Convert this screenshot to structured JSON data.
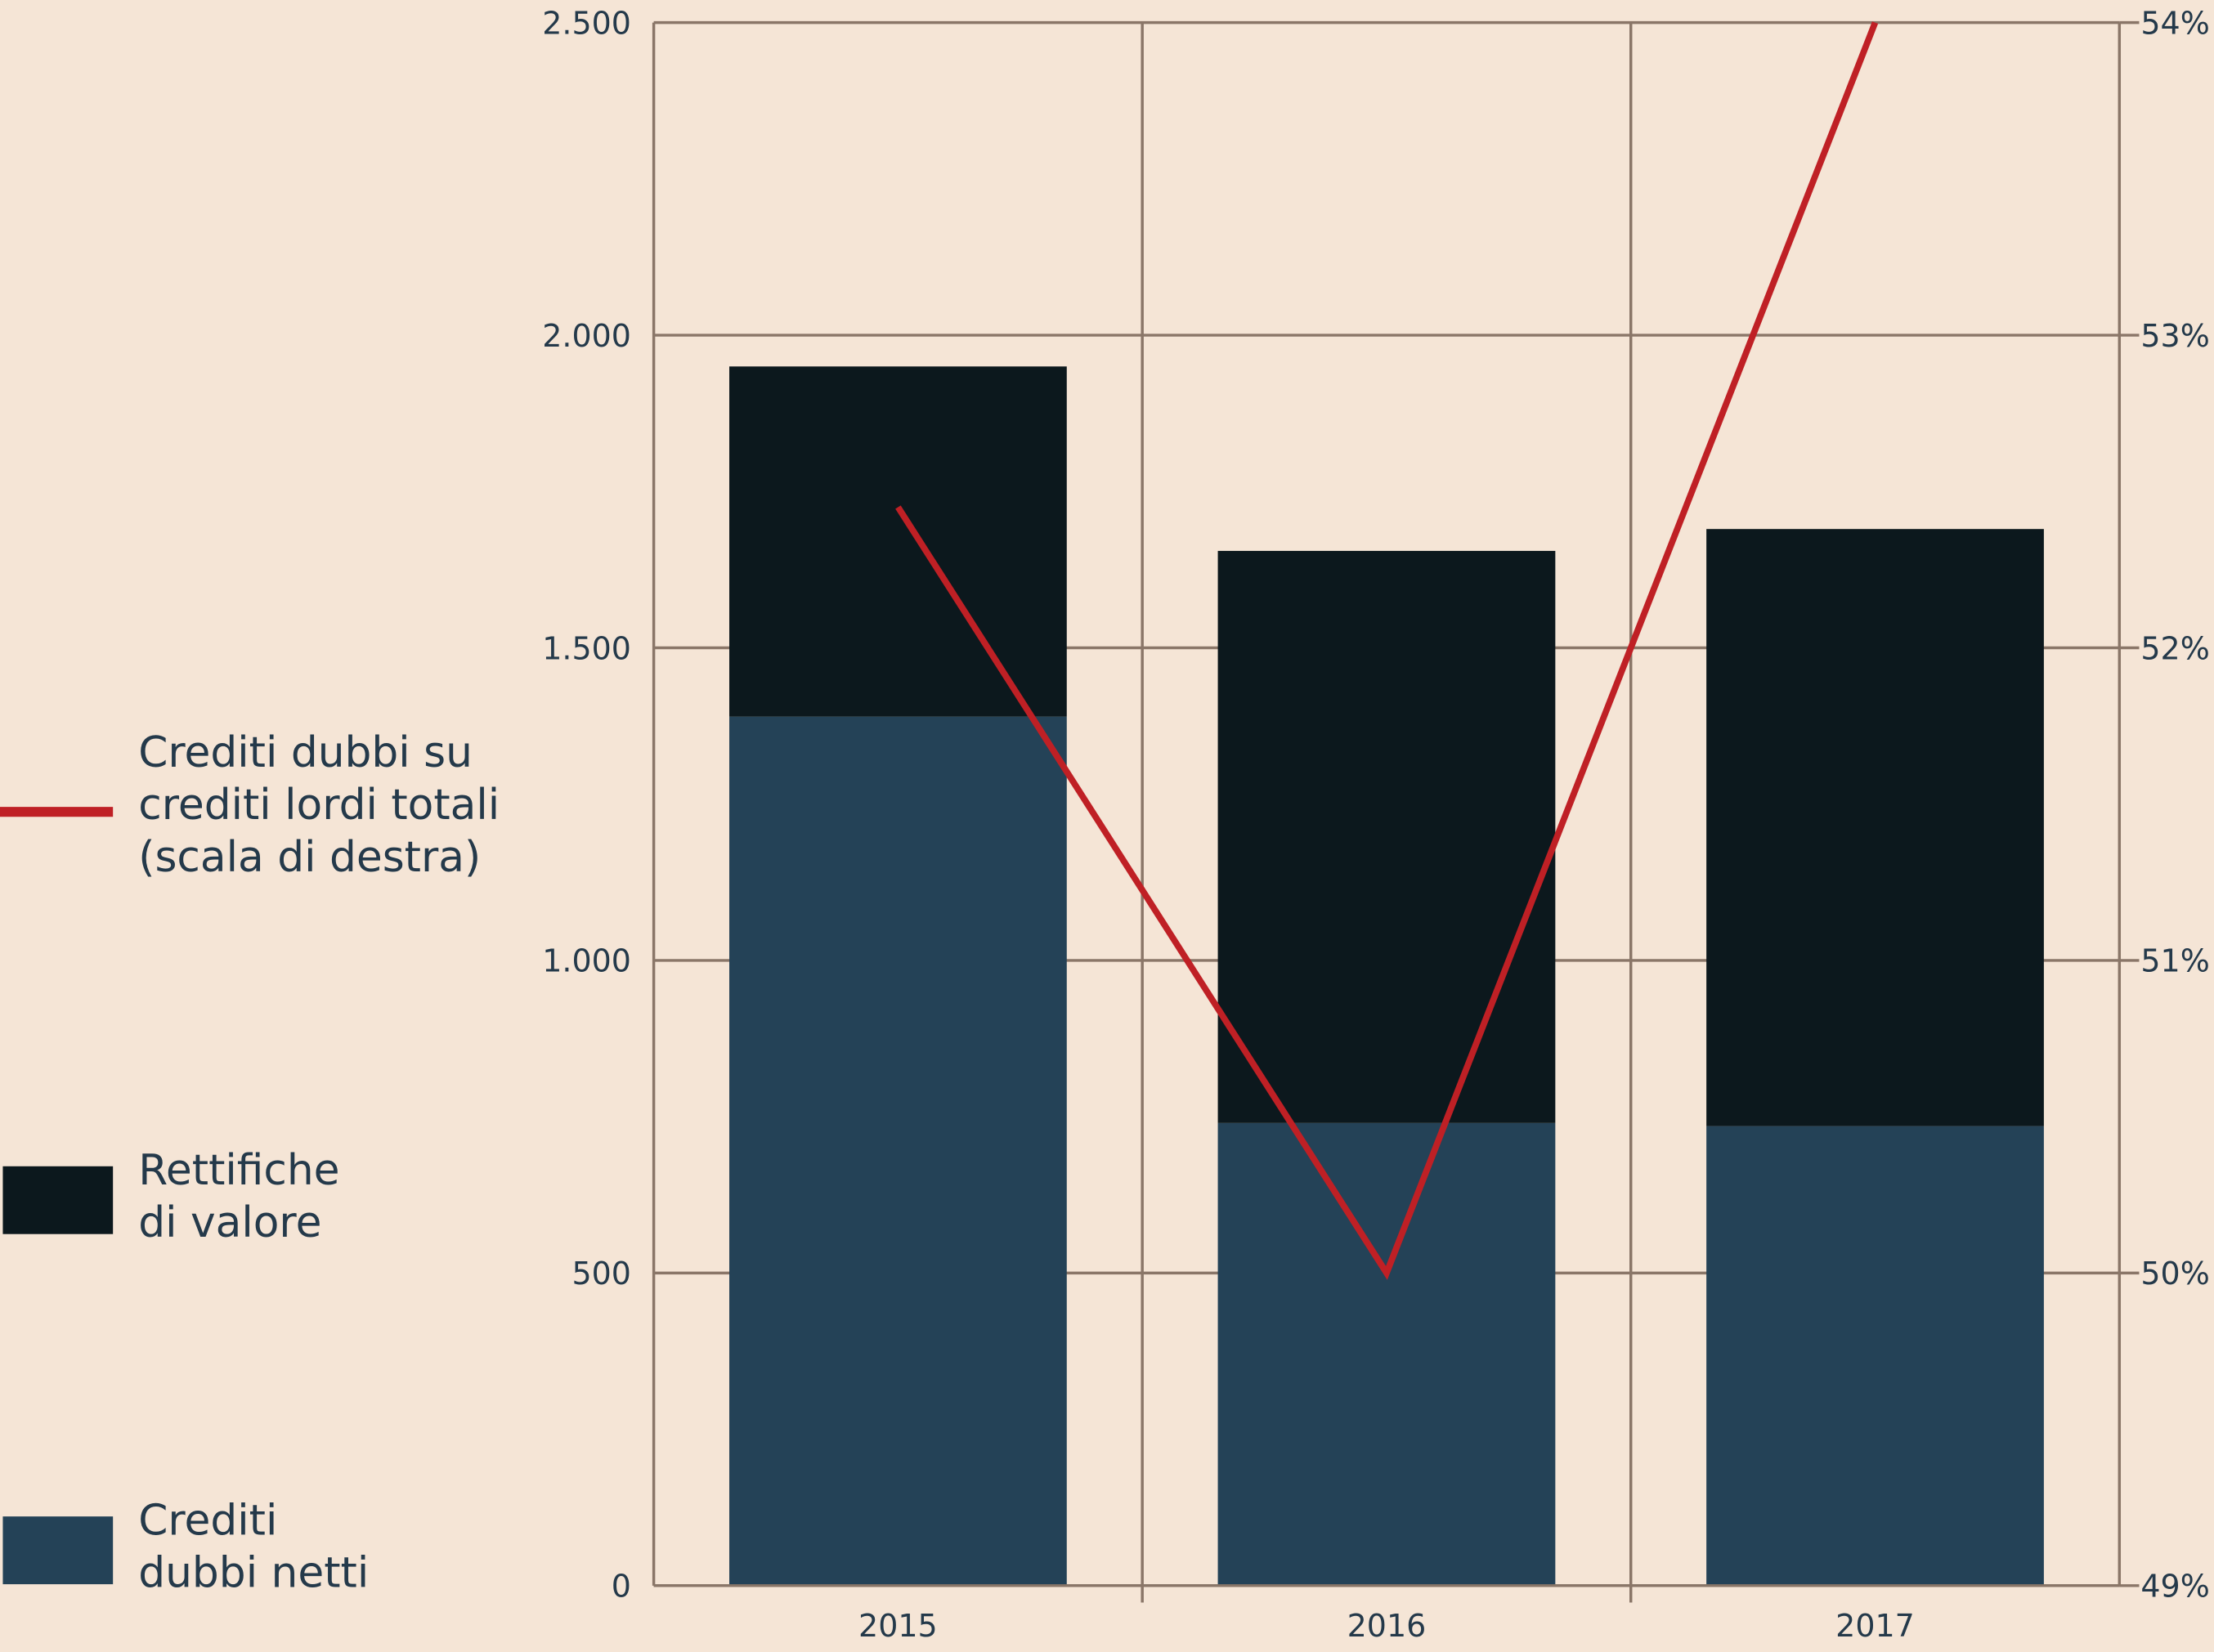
{
  "chart_data": {
    "type": "bar",
    "stacked": true,
    "categories": [
      "2015",
      "2016",
      "2017"
    ],
    "series": [
      {
        "name": "Crediti dubbi netti",
        "legend_lines": [
          "Crediti",
          "dubbi netti"
        ],
        "values": [
          1390,
          740,
          735
        ],
        "color": "#244257",
        "axis": "left"
      },
      {
        "name": "Rettifiche di valore",
        "legend_lines": [
          "Rettifiche",
          "di valore"
        ],
        "values": [
          560,
          915,
          955
        ],
        "color": "#0c181d",
        "axis": "left"
      }
    ],
    "line_series": {
      "name": "Crediti dubbi su crediti lordi totali (scala di destra)",
      "legend_lines": [
        "Crediti dubbi su",
        "crediti lordi totali",
        "(scala di destra)"
      ],
      "values": [
        52.45,
        50.0,
        54.0
      ],
      "color": "#bf2025",
      "axis": "right"
    },
    "left_axis": {
      "ylim": [
        0,
        2500
      ],
      "ticks": [
        0,
        500,
        1000,
        1500,
        2000,
        2500
      ],
      "tick_labels": [
        "0",
        "500",
        "1.000",
        "1.500",
        "2.000",
        "2.500"
      ]
    },
    "right_axis": {
      "ylim": [
        49,
        54
      ],
      "ticks": [
        49,
        50,
        51,
        52,
        53,
        54
      ],
      "tick_labels": [
        "49%",
        "50%",
        "51%",
        "52%",
        "53%",
        "54%"
      ]
    },
    "grid": true,
    "legend_placement": "left",
    "title": "",
    "xlabel": "",
    "ylabel": ""
  }
}
